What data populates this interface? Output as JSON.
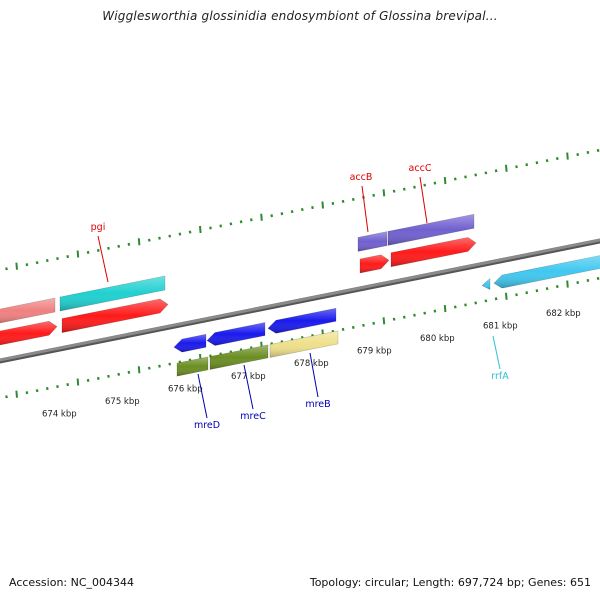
{
  "title": "Wigglesworthia glossinidia endosymbiont of Glossina brevipal...",
  "footer": {
    "accession": "Accession: NC_004344",
    "summary": "Topology: circular; Length: 697,724 bp; Genes: 651"
  },
  "colors": {
    "backbone": "#8a8a8a",
    "tick_green": "#2e8b2e",
    "forward_red": "#ff1a1a",
    "forward_cyan": "#20d0d0",
    "forward_purple": "#7060d0",
    "forward_pink": "#f08080",
    "reverse_blue": "#1a1aee",
    "reverse_olive": "#6b8e23",
    "reverse_khaki": "#eee08a",
    "reverse_lightblue": "#40c8f0",
    "label_red": "#e00000",
    "label_blue": "#0000b0",
    "label_cyan": "#30c0d8"
  },
  "kbp_ticks": [
    {
      "label": "674 kbp",
      "kbp": 674
    },
    {
      "label": "675 kbp",
      "kbp": 675
    },
    {
      "label": "676 kbp",
      "kbp": 676
    },
    {
      "label": "677 kbp",
      "kbp": 677
    },
    {
      "label": "678 kbp",
      "kbp": 678
    },
    {
      "label": "679 kbp",
      "kbp": 679
    },
    {
      "label": "680 kbp",
      "kbp": 680
    },
    {
      "label": "681 kbp",
      "kbp": 681
    },
    {
      "label": "682 kbp",
      "kbp": 682
    }
  ],
  "gene_labels": [
    {
      "name": "pgi",
      "strand": "forward"
    },
    {
      "name": "accB",
      "strand": "forward"
    },
    {
      "name": "accC",
      "strand": "forward"
    },
    {
      "name": "mreD",
      "strand": "reverse"
    },
    {
      "name": "mreC",
      "strand": "reverse"
    },
    {
      "name": "mreB",
      "strand": "reverse"
    },
    {
      "name": "rrfA",
      "strand": "reverse"
    }
  ]
}
